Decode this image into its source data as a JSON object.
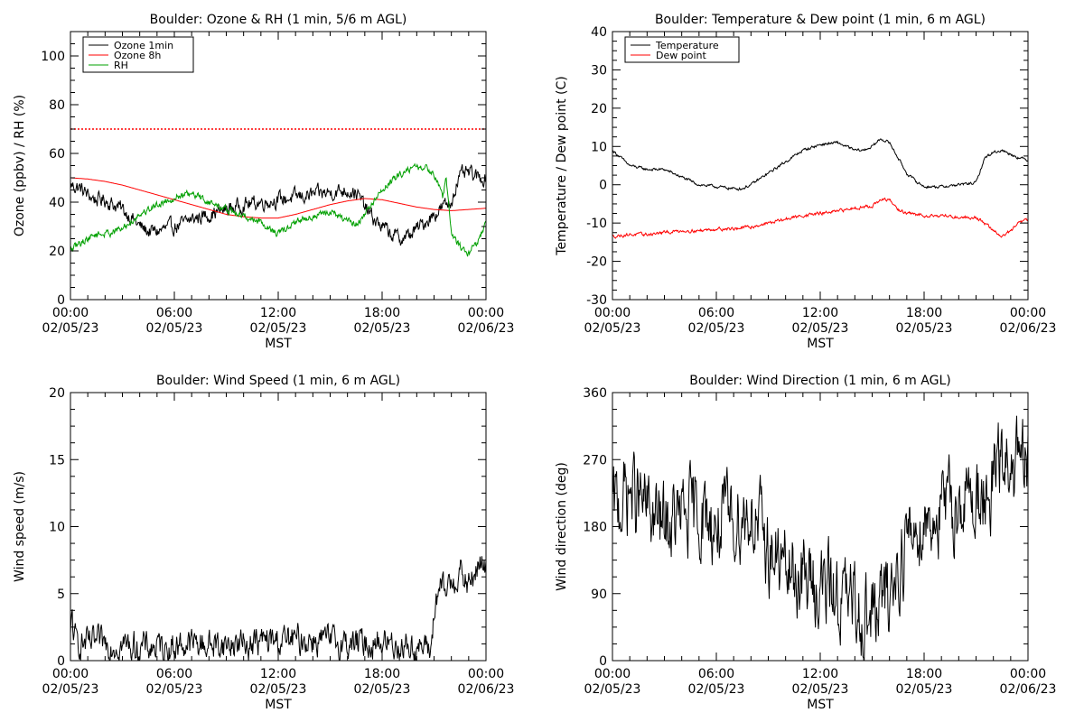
{
  "chart_data": [
    {
      "type": "line",
      "title": "Boulder: Ozone & RH (1 min, 5/6 m AGL)",
      "xlabel": "MST",
      "ylabel": "Ozone (ppbv) / RH (%)",
      "ylim": [
        0,
        110
      ],
      "yticks": [
        0,
        20,
        40,
        60,
        80,
        100
      ],
      "xlim": [
        0,
        24
      ],
      "xticks": [
        {
          "x": 0,
          "time": "00:00",
          "date": "02/05/23"
        },
        {
          "x": 6,
          "time": "06:00",
          "date": "02/05/23"
        },
        {
          "x": 12,
          "time": "12:00",
          "date": "02/05/23"
        },
        {
          "x": 18,
          "time": "18:00",
          "date": "02/05/23"
        },
        {
          "x": 24,
          "time": "00:00",
          "date": "02/06/23"
        }
      ],
      "legend_position": "top-left",
      "reference_line": {
        "y": 70,
        "color": "#ff0000",
        "style": "dotted"
      },
      "series": [
        {
          "name": "Ozone 1min",
          "color": "#000000",
          "noise": 2.5,
          "x": [
            0,
            0.5,
            1,
            1.5,
            2,
            2.5,
            3,
            3.5,
            4,
            4.5,
            5,
            5.5,
            6,
            6.5,
            7,
            7.5,
            8,
            8.5,
            9,
            10,
            11,
            12,
            13,
            14,
            15,
            16,
            16.5,
            17,
            17.5,
            18,
            18.5,
            19,
            19.5,
            20,
            20.5,
            21,
            21.5,
            22,
            22.3,
            22.6,
            23,
            23.5,
            24
          ],
          "y": [
            47,
            46,
            43,
            41,
            41,
            39,
            37,
            34,
            30,
            28,
            28,
            29,
            30,
            31,
            33,
            34,
            35,
            36,
            37,
            39,
            40,
            41,
            42,
            43,
            44,
            45,
            44,
            38,
            33,
            30,
            27,
            25,
            26,
            29,
            32,
            35,
            38,
            40,
            48,
            51,
            52,
            50,
            50
          ]
        },
        {
          "name": "Ozone 8h",
          "color": "#ff0000",
          "noise": 0,
          "x": [
            0,
            1,
            2,
            3,
            4,
            5,
            6,
            7,
            8,
            9,
            10,
            11,
            12,
            13,
            14,
            15,
            16,
            17,
            18,
            19,
            20,
            21,
            22,
            23,
            24
          ],
          "y": [
            50,
            49.5,
            48.5,
            47,
            45,
            43,
            41,
            39,
            37,
            35,
            34,
            33.5,
            33.5,
            35,
            37,
            39,
            40.5,
            41.5,
            41,
            39.5,
            38,
            37,
            36.5,
            37,
            37.5
          ]
        },
        {
          "name": "RH",
          "color": "#00a000",
          "noise": 1.2,
          "x": [
            0,
            0.5,
            1,
            1.5,
            2,
            3,
            4,
            5,
            6,
            6.5,
            7,
            7.5,
            8,
            9,
            10,
            11,
            11.5,
            12,
            12.5,
            13,
            14,
            15,
            16,
            16.5,
            17,
            18,
            19,
            19.5,
            20,
            20.5,
            21,
            21.3,
            21.5,
            21.7,
            22,
            22.5,
            23,
            23.5,
            24
          ],
          "y": [
            20,
            23,
            25,
            27,
            27,
            29,
            35,
            39,
            42,
            43,
            43,
            42,
            40,
            37,
            34,
            32,
            29,
            27,
            29,
            32,
            34,
            36,
            32,
            31,
            35,
            45,
            51,
            54,
            54,
            54,
            52,
            47,
            42,
            50,
            27,
            22,
            19,
            24,
            31
          ]
        }
      ]
    },
    {
      "type": "line",
      "title": "Boulder: Temperature & Dew point (1 min, 6 m AGL)",
      "xlabel": "MST",
      "ylabel": "Temperature / Dew point (C)",
      "ylim": [
        -30,
        40
      ],
      "yticks": [
        -30,
        -20,
        -10,
        0,
        10,
        20,
        30,
        40
      ],
      "xlim": [
        0,
        24
      ],
      "xticks": [
        {
          "x": 0,
          "time": "00:00",
          "date": "02/05/23"
        },
        {
          "x": 6,
          "time": "06:00",
          "date": "02/05/23"
        },
        {
          "x": 12,
          "time": "12:00",
          "date": "02/05/23"
        },
        {
          "x": 18,
          "time": "18:00",
          "date": "02/05/23"
        },
        {
          "x": 24,
          "time": "00:00",
          "date": "02/06/23"
        }
      ],
      "legend_position": "top-left",
      "series": [
        {
          "name": "Temperature",
          "color": "#000000",
          "noise": 0.3,
          "x": [
            0,
            0.5,
            1,
            2,
            3,
            4,
            5,
            6,
            7,
            7.5,
            8,
            9,
            10,
            11,
            12,
            13,
            13.5,
            14,
            14.5,
            15,
            15.5,
            16,
            16.5,
            17,
            17.5,
            18,
            19,
            20,
            21,
            21.5,
            22,
            22.5,
            23,
            23.5,
            24
          ],
          "y": [
            9,
            7,
            5,
            4,
            4,
            2,
            0,
            -0.5,
            -1,
            -1,
            0,
            3,
            6,
            9,
            10.5,
            11,
            10,
            9,
            9,
            10,
            12,
            11,
            7,
            3,
            1,
            -0.5,
            -0.5,
            0,
            0.5,
            7,
            8.5,
            9,
            8,
            7,
            6.5
          ]
        },
        {
          "name": "Dew point",
          "color": "#ff0000",
          "noise": 0.35,
          "x": [
            0,
            1,
            2,
            3,
            4,
            5,
            6,
            7,
            8,
            9,
            10,
            11,
            12,
            13,
            14,
            15,
            15.5,
            16,
            16.5,
            17,
            18,
            19,
            20,
            21,
            21.5,
            22,
            22.5,
            23,
            23.5,
            24
          ],
          "y": [
            -13.5,
            -13,
            -13,
            -12.5,
            -12,
            -12,
            -11.5,
            -11.5,
            -11,
            -10,
            -9,
            -8,
            -7.5,
            -7,
            -6,
            -5.5,
            -4,
            -4,
            -6.5,
            -7.5,
            -8,
            -8,
            -8.5,
            -8.5,
            -10,
            -12,
            -13.5,
            -12,
            -10,
            -9
          ]
        }
      ]
    },
    {
      "type": "line",
      "title": "Boulder: Wind Speed (1 min, 6 m AGL)",
      "xlabel": "MST",
      "ylabel": "Wind speed (m/s)",
      "ylim": [
        0,
        20
      ],
      "yticks": [
        0,
        5,
        10,
        15,
        20
      ],
      "xlim": [
        0,
        24
      ],
      "xticks": [
        {
          "x": 0,
          "time": "00:00",
          "date": "02/05/23"
        },
        {
          "x": 6,
          "time": "06:00",
          "date": "02/05/23"
        },
        {
          "x": 12,
          "time": "12:00",
          "date": "02/05/23"
        },
        {
          "x": 18,
          "time": "18:00",
          "date": "02/05/23"
        },
        {
          "x": 24,
          "time": "00:00",
          "date": "02/06/23"
        }
      ],
      "series": [
        {
          "name": "",
          "color": "#000000",
          "noise": 0.9,
          "x": [
            0,
            0.1,
            0.2,
            1,
            2,
            3,
            4,
            5,
            6,
            7,
            8,
            9,
            10,
            11,
            12,
            13,
            14,
            15,
            16,
            17,
            18,
            19,
            20,
            20.8,
            21,
            21.3,
            21.6,
            22,
            22.5,
            23,
            23.5,
            24
          ],
          "y": [
            1.5,
            3.5,
            1.5,
            1.2,
            1.3,
            1.2,
            1.0,
            1.0,
            1.1,
            1.3,
            1.2,
            1.2,
            1.3,
            1.4,
            1.5,
            1.5,
            1.6,
            1.4,
            1.3,
            1.3,
            1.4,
            1.2,
            1.0,
            0.8,
            3.5,
            5.5,
            5,
            6,
            6.5,
            5.5,
            7,
            7
          ]
        }
      ]
    },
    {
      "type": "line",
      "title": "Boulder: Wind Direction (1 min, 6 m AGL)",
      "xlabel": "MST",
      "ylabel": "Wind direction (deg)",
      "ylim": [
        0,
        360
      ],
      "yticks": [
        0,
        90,
        180,
        270,
        360
      ],
      "xlim": [
        0,
        24
      ],
      "xticks": [
        {
          "x": 0,
          "time": "00:00",
          "date": "02/05/23"
        },
        {
          "x": 6,
          "time": "06:00",
          "date": "02/05/23"
        },
        {
          "x": 12,
          "time": "12:00",
          "date": "02/05/23"
        },
        {
          "x": 18,
          "time": "18:00",
          "date": "02/05/23"
        },
        {
          "x": 24,
          "time": "00:00",
          "date": "02/06/23"
        }
      ],
      "series": [
        {
          "name": "",
          "color": "#000000",
          "noise": 45,
          "x": [
            0,
            1,
            2,
            3,
            4,
            5,
            6,
            7,
            8,
            9,
            10,
            11,
            12,
            13,
            14,
            15,
            16,
            17,
            18,
            19,
            20,
            21,
            21.5,
            21.8,
            22,
            22.5,
            23,
            23.5,
            24
          ],
          "y": [
            200,
            230,
            200,
            180,
            190,
            200,
            180,
            190,
            200,
            150,
            120,
            110,
            100,
            90,
            70,
            60,
            90,
            160,
            190,
            200,
            210,
            220,
            230,
            150,
            260,
            260,
            255,
            260,
            255
          ]
        }
      ]
    }
  ]
}
